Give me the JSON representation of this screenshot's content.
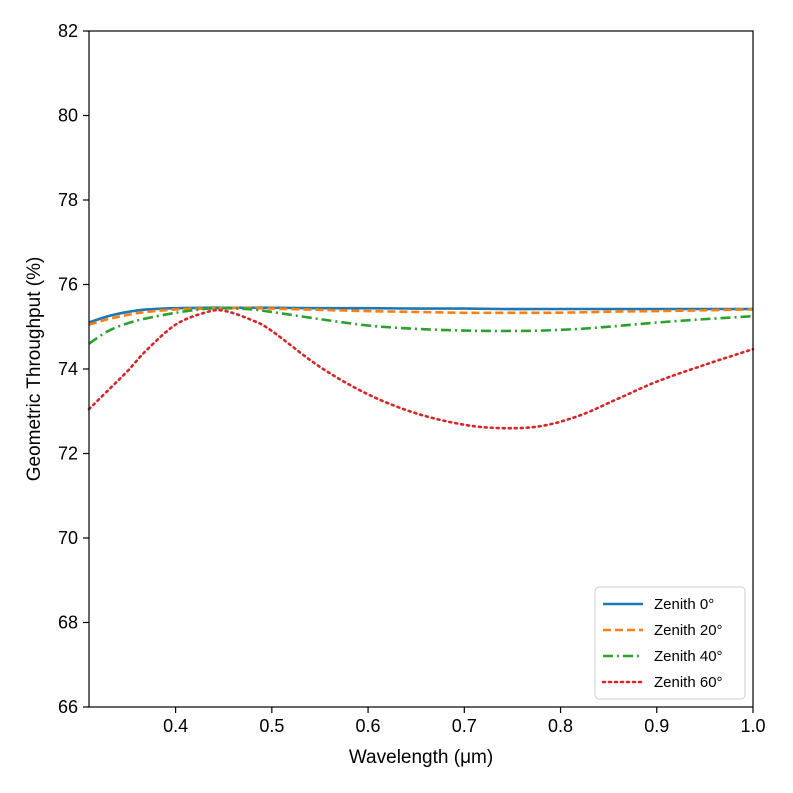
{
  "chart_data": {
    "type": "line",
    "title": "",
    "xlabel": "Wavelength (μm)",
    "ylabel": "Geometric Throughput (%)",
    "xlim": [
      0.31,
      1.0
    ],
    "ylim": [
      66,
      82
    ],
    "xticks": [
      "0.4",
      "0.5",
      "0.6",
      "0.7",
      "0.8",
      "0.9",
      "1.0"
    ],
    "yticks": [
      "66",
      "68",
      "70",
      "72",
      "74",
      "76",
      "78",
      "80",
      "82"
    ],
    "grid": false,
    "legend_position": "lower-right",
    "x": [
      0.31,
      0.33,
      0.35,
      0.37,
      0.4,
      0.43,
      0.45,
      0.48,
      0.5,
      0.55,
      0.6,
      0.65,
      0.7,
      0.74,
      0.78,
      0.82,
      0.86,
      0.9,
      0.95,
      1.0
    ],
    "series": [
      {
        "name": "Zenith 0°",
        "color": "#1f77b4",
        "style": "solid",
        "values": [
          75.1,
          75.25,
          75.35,
          75.41,
          75.44,
          75.45,
          75.45,
          75.45,
          75.45,
          75.44,
          75.44,
          75.43,
          75.43,
          75.42,
          75.42,
          75.42,
          75.42,
          75.42,
          75.42,
          75.42
        ]
      },
      {
        "name": "Zenith 20°",
        "color": "#ff7f0e",
        "style": "dashed",
        "values": [
          75.05,
          75.18,
          75.28,
          75.35,
          75.41,
          75.43,
          75.44,
          75.44,
          75.43,
          75.4,
          75.37,
          75.35,
          75.33,
          75.33,
          75.33,
          75.34,
          75.36,
          75.37,
          75.39,
          75.41
        ]
      },
      {
        "name": "Zenith 40°",
        "color": "#2ca02c",
        "style": "dashdot",
        "values": [
          74.6,
          74.9,
          75.08,
          75.2,
          75.33,
          75.42,
          75.44,
          75.41,
          75.35,
          75.18,
          75.03,
          74.95,
          74.91,
          74.9,
          74.91,
          74.95,
          75.02,
          75.1,
          75.18,
          75.25
        ]
      },
      {
        "name": "Zenith 60°",
        "color": "#d62728",
        "style": "dotted",
        "values": [
          73.05,
          73.5,
          73.95,
          74.45,
          75.05,
          75.33,
          75.38,
          75.15,
          74.9,
          74.05,
          73.4,
          72.95,
          72.68,
          72.6,
          72.65,
          72.9,
          73.3,
          73.7,
          74.1,
          74.47
        ]
      }
    ]
  }
}
